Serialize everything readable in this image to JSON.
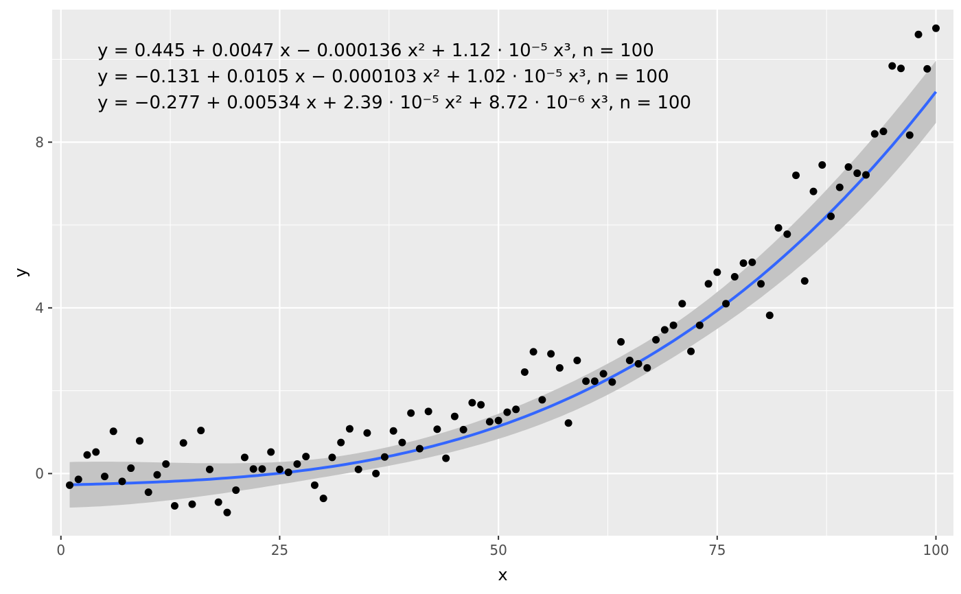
{
  "chart_data": {
    "type": "scatter",
    "title": "",
    "xlabel": "x",
    "ylabel": "y",
    "xlim": [
      -1,
      102
    ],
    "ylim": [
      -1.5,
      11.2
    ],
    "x_ticks": [
      0,
      25,
      50,
      75,
      100
    ],
    "x_tick_labels": [
      "0",
      "25",
      "50",
      "75",
      "100"
    ],
    "y_ticks": [
      0,
      4,
      8
    ],
    "y_tick_labels": [
      "0",
      "4",
      "8"
    ],
    "grid": true,
    "colors": {
      "panel_background": "#ebebeb",
      "grid_major": "#ffffff",
      "points": "#000000",
      "fit_line": "#3366ff",
      "confidence_band": "#c4c4c4"
    },
    "fit": {
      "type": "cubic",
      "coefficients": [
        -0.277,
        0.00534,
        2.39e-05,
        8.72e-06
      ],
      "band_half_width": [
        0.55,
        0.22,
        0.38,
        0.75
      ]
    },
    "annotations": [
      "y = 0.445 + 0.0047 x − 0.000136 x² + 1.12 · 10⁻⁵ x³, n = 100",
      "y = −0.131 + 0.0105 x − 0.000103 x² + 1.02 · 10⁻⁵ x³, n = 100",
      "y = −0.277 + 0.00534 x + 2.39 · 10⁻⁵ x² + 8.72 · 10⁻⁶ x³, n = 100"
    ],
    "points": [
      [
        1,
        -0.28
      ],
      [
        2,
        -0.14
      ],
      [
        3,
        0.45
      ],
      [
        4,
        0.52
      ],
      [
        5,
        -0.07
      ],
      [
        6,
        1.02
      ],
      [
        7,
        -0.19
      ],
      [
        8,
        0.13
      ],
      [
        9,
        0.79
      ],
      [
        10,
        -0.45
      ],
      [
        11,
        -0.03
      ],
      [
        12,
        0.23
      ],
      [
        13,
        -0.78
      ],
      [
        14,
        0.74
      ],
      [
        15,
        -0.74
      ],
      [
        16,
        1.04
      ],
      [
        17,
        0.1
      ],
      [
        18,
        -0.69
      ],
      [
        19,
        -0.94
      ],
      [
        20,
        -0.4
      ],
      [
        21,
        0.39
      ],
      [
        22,
        0.11
      ],
      [
        23,
        0.11
      ],
      [
        24,
        0.52
      ],
      [
        25,
        0.1
      ],
      [
        26,
        0.03
      ],
      [
        27,
        0.23
      ],
      [
        28,
        0.41
      ],
      [
        29,
        -0.28
      ],
      [
        30,
        -0.6
      ],
      [
        31,
        0.39
      ],
      [
        32,
        0.75
      ],
      [
        33,
        1.08
      ],
      [
        34,
        0.1
      ],
      [
        35,
        0.98
      ],
      [
        36,
        0.0
      ],
      [
        37,
        0.4
      ],
      [
        38,
        1.03
      ],
      [
        39,
        0.75
      ],
      [
        40,
        1.46
      ],
      [
        41,
        0.6
      ],
      [
        42,
        1.5
      ],
      [
        43,
        1.07
      ],
      [
        44,
        0.37
      ],
      [
        45,
        1.38
      ],
      [
        46,
        1.06
      ],
      [
        47,
        1.71
      ],
      [
        48,
        1.66
      ],
      [
        49,
        1.25
      ],
      [
        50,
        1.28
      ],
      [
        51,
        1.48
      ],
      [
        52,
        1.55
      ],
      [
        53,
        2.45
      ],
      [
        54,
        2.94
      ],
      [
        55,
        1.78
      ],
      [
        56,
        2.89
      ],
      [
        57,
        2.55
      ],
      [
        58,
        1.22
      ],
      [
        59,
        2.73
      ],
      [
        60,
        2.23
      ],
      [
        61,
        2.23
      ],
      [
        62,
        2.41
      ],
      [
        63,
        2.21
      ],
      [
        64,
        3.18
      ],
      [
        65,
        2.73
      ],
      [
        66,
        2.65
      ],
      [
        67,
        2.55
      ],
      [
        68,
        3.23
      ],
      [
        69,
        3.47
      ],
      [
        70,
        3.58
      ],
      [
        71,
        4.1
      ],
      [
        72,
        2.95
      ],
      [
        73,
        3.58
      ],
      [
        74,
        4.58
      ],
      [
        75,
        4.86
      ],
      [
        76,
        4.1
      ],
      [
        77,
        4.75
      ],
      [
        78,
        5.08
      ],
      [
        79,
        5.1
      ],
      [
        80,
        4.58
      ],
      [
        81,
        3.82
      ],
      [
        82,
        5.93
      ],
      [
        83,
        5.78
      ],
      [
        84,
        7.2
      ],
      [
        85,
        4.65
      ],
      [
        86,
        6.81
      ],
      [
        87,
        7.45
      ],
      [
        88,
        6.21
      ],
      [
        89,
        6.91
      ],
      [
        90,
        7.4
      ],
      [
        91,
        7.25
      ],
      [
        92,
        7.21
      ],
      [
        93,
        8.2
      ],
      [
        94,
        8.26
      ],
      [
        95,
        9.84
      ],
      [
        96,
        9.78
      ],
      [
        97,
        8.17
      ],
      [
        98,
        10.6
      ],
      [
        99,
        9.77
      ],
      [
        100,
        10.75
      ]
    ]
  }
}
